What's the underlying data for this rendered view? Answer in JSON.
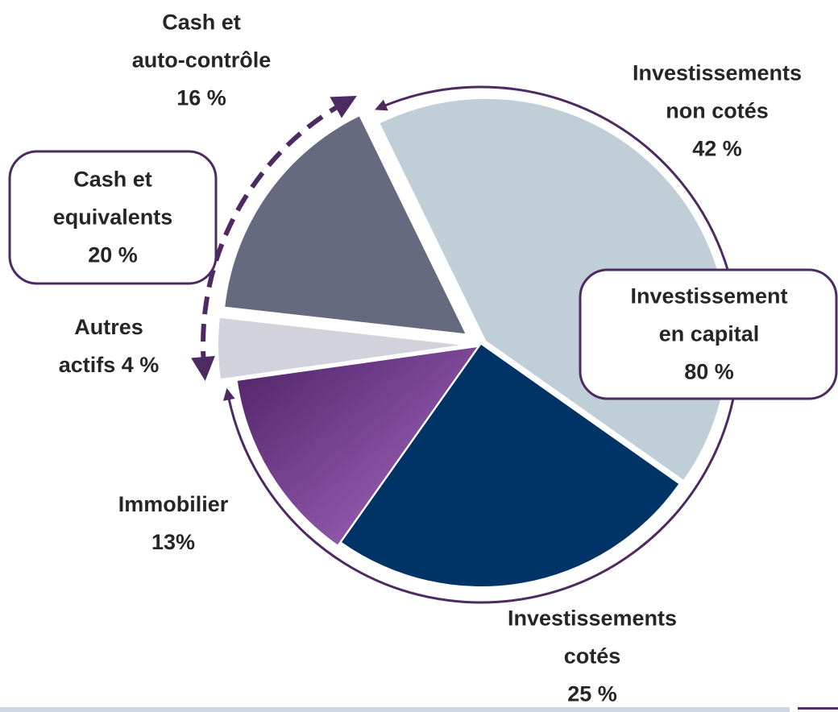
{
  "chart_data": {
    "type": "pie",
    "categories": [
      "Investissements\nnon cotés",
      "Investissements\ncotés",
      "Immobilier",
      "Autres\nactifs",
      "Cash et\nauto-contrôle"
    ],
    "values": [
      42,
      25,
      13,
      4,
      16
    ],
    "value_labels": [
      "42 %",
      "25 %",
      "13%",
      "4 %",
      "16 %"
    ],
    "colors": [
      "#c0ced8",
      "#003366",
      "#a86cc4",
      "#d2d2dc",
      "#656a7e"
    ],
    "groups": [
      {
        "name": "Investissement\nen capital",
        "value": 80,
        "value_label": "80 %"
      },
      {
        "name": "Cash et\nequivalents",
        "value": 20,
        "value_label": "20 %"
      }
    ]
  }
}
